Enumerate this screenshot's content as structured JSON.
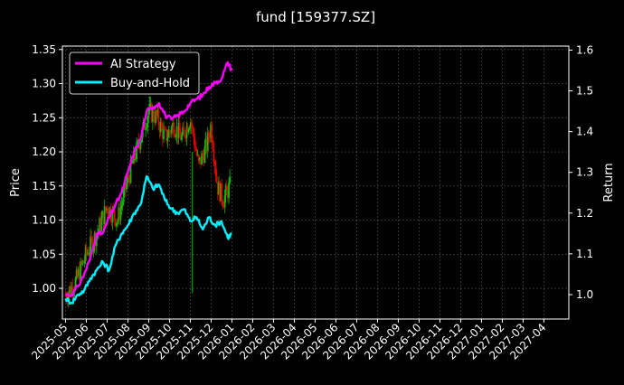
{
  "chart_data": {
    "type": "line",
    "title": "fund [159377.SZ]",
    "ylabel_left": "Price",
    "ylabel_right": "Return",
    "grid": true,
    "legend": {
      "placement": "top-left",
      "entries": [
        {
          "name": "AI Strategy",
          "color": "#ff00ff"
        },
        {
          "name": "Buy-and-Hold",
          "color": "#00f0ff"
        }
      ]
    },
    "colors": {
      "background": "#000000",
      "axis": "#ffffff",
      "grid": "#555555",
      "candle_up": "#00c000",
      "candle_down": "#e00000",
      "ai_strategy": "#ff00ff",
      "buy_and_hold": "#00f0ff"
    },
    "x_ticks": [
      "2025-05",
      "2025-06",
      "2025-07",
      "2025-08",
      "2025-09",
      "2025-10",
      "2025-11",
      "2025-12",
      "2026-01",
      "2026-02",
      "2026-03",
      "2026-04",
      "2026-05",
      "2026-06",
      "2026-07",
      "2026-08",
      "2026-09",
      "2026-10",
      "2026-11",
      "2026-12",
      "2027-01",
      "2027-02",
      "2027-03",
      "2027-04"
    ],
    "x_range_months": [
      -0.15,
      24.2
    ],
    "y_left": {
      "range": [
        0.955,
        1.355
      ],
      "ticks": [
        "1.00",
        "1.05",
        "1.10",
        "1.15",
        "1.20",
        "1.25",
        "1.30",
        "1.35"
      ]
    },
    "y_right": {
      "range": [
        0.94,
        1.61
      ],
      "ticks": [
        "1.0",
        "1.1",
        "1.2",
        "1.3",
        "1.4",
        "1.5",
        "1.6"
      ]
    },
    "price_series": {
      "name": "Price",
      "x_months": [
        0.0,
        0.5,
        1.0,
        1.5,
        2.0,
        2.5,
        3.0,
        3.5,
        4.0,
        4.4,
        4.8,
        5.2,
        5.6,
        6.0,
        6.4,
        6.8,
        7.0,
        7.3,
        7.6,
        7.9
      ],
      "close": [
        0.99,
        1.01,
        1.05,
        1.08,
        1.12,
        1.1,
        1.16,
        1.21,
        1.26,
        1.25,
        1.22,
        1.24,
        1.22,
        1.25,
        1.18,
        1.21,
        1.24,
        1.15,
        1.13,
        1.15
      ]
    },
    "series": [
      {
        "name": "AI Strategy",
        "x_months": [
          0.0,
          0.3,
          0.6,
          0.9,
          1.2,
          1.5,
          1.8,
          2.1,
          2.4,
          2.7,
          3.0,
          3.3,
          3.6,
          3.9,
          4.2,
          4.5,
          4.8,
          5.1,
          5.4,
          5.7,
          6.0,
          6.3,
          6.6,
          6.9,
          7.2,
          7.5,
          7.8,
          8.0
        ],
        "values": [
          1.0,
          1.0,
          1.02,
          1.05,
          1.09,
          1.15,
          1.15,
          1.19,
          1.22,
          1.25,
          1.3,
          1.35,
          1.38,
          1.45,
          1.46,
          1.47,
          1.44,
          1.43,
          1.44,
          1.45,
          1.47,
          1.48,
          1.49,
          1.51,
          1.52,
          1.53,
          1.57,
          1.55
        ]
      },
      {
        "name": "Buy-and-Hold",
        "x_months": [
          0.0,
          0.3,
          0.6,
          0.9,
          1.2,
          1.5,
          1.8,
          2.1,
          2.4,
          2.7,
          3.0,
          3.3,
          3.6,
          3.9,
          4.2,
          4.5,
          4.8,
          5.1,
          5.4,
          5.7,
          6.0,
          6.3,
          6.6,
          6.9,
          7.2,
          7.5,
          7.8,
          8.0
        ],
        "values": [
          0.99,
          0.98,
          1.0,
          1.01,
          1.04,
          1.06,
          1.08,
          1.06,
          1.12,
          1.15,
          1.17,
          1.2,
          1.22,
          1.29,
          1.26,
          1.27,
          1.23,
          1.21,
          1.2,
          1.21,
          1.18,
          1.19,
          1.16,
          1.19,
          1.17,
          1.18,
          1.14,
          1.15
        ]
      }
    ]
  }
}
